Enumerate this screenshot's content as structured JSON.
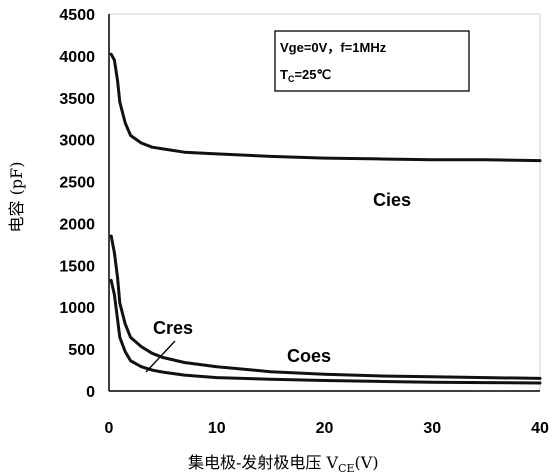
{
  "chart_data": {
    "type": "line",
    "xlabel": "集电极-发射极电压 V",
    "xlabel_sub": "CE",
    "xlabel_unit": "(V)",
    "ylabel": "电容  (pF)",
    "xlim": [
      0,
      40
    ],
    "ylim": [
      0,
      4500
    ],
    "x_ticks": [
      "0",
      "10",
      "20",
      "30",
      "40"
    ],
    "y_ticks": [
      "0",
      "500",
      "1000",
      "1500",
      "2000",
      "2500",
      "3000",
      "3500",
      "4000",
      "4500"
    ],
    "grid": false,
    "legend_box": {
      "line1": "Vge=0V，f=1MHz",
      "line2_prefix": "T",
      "line2_sub": "C",
      "line2_suffix": "=25℃"
    },
    "series": [
      {
        "name": "Cies",
        "x": [
          0.2,
          0.5,
          0.8,
          1,
          1.5,
          2,
          3,
          4,
          5,
          7,
          10,
          15,
          20,
          25,
          30,
          35,
          40
        ],
        "values": [
          4020,
          3950,
          3700,
          3450,
          3200,
          3050,
          2960,
          2910,
          2890,
          2850,
          2830,
          2800,
          2780,
          2770,
          2760,
          2760,
          2750
        ]
      },
      {
        "name": "Coes",
        "x": [
          0.2,
          0.5,
          0.8,
          1,
          1.5,
          2,
          3,
          4,
          5,
          7,
          10,
          15,
          20,
          25,
          30,
          35,
          40
        ],
        "values": [
          1850,
          1650,
          1350,
          1050,
          800,
          640,
          530,
          450,
          400,
          340,
          290,
          230,
          200,
          180,
          170,
          160,
          150
        ]
      },
      {
        "name": "Cres",
        "x": [
          0.2,
          0.5,
          0.8,
          1,
          1.5,
          2,
          3,
          4,
          5,
          7,
          10,
          15,
          20,
          25,
          30,
          35,
          40
        ],
        "values": [
          1320,
          1150,
          850,
          640,
          470,
          360,
          290,
          250,
          225,
          190,
          160,
          140,
          125,
          115,
          105,
          100,
          95
        ]
      }
    ]
  }
}
